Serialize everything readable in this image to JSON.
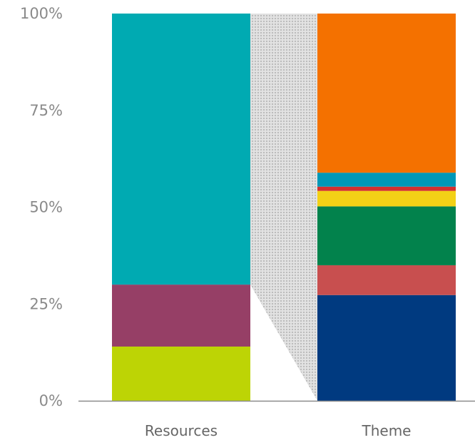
{
  "chart_data": {
    "type": "bar",
    "stacked": true,
    "normalized": true,
    "categories": [
      "Resources",
      "Theme"
    ],
    "y_axis": {
      "ticks": [
        "0%",
        "25%",
        "50%",
        "75%",
        "100%"
      ],
      "tick_values": [
        0,
        25,
        50,
        75,
        100
      ],
      "ylim": [
        0,
        100
      ]
    },
    "connector": {
      "from_category": "Resources",
      "to_category": "Theme",
      "from_range": [
        30,
        100
      ],
      "to_range": [
        0,
        100
      ],
      "fill": "dotted-gray"
    },
    "stacks": [
      {
        "category": "Resources",
        "segments": [
          {
            "value": 14,
            "color": "#bdd405"
          },
          {
            "value": 16,
            "color": "#963f66"
          },
          {
            "value": 70,
            "color": "#00aab2"
          }
        ]
      },
      {
        "category": "Theme",
        "segments": [
          {
            "value": 27.3,
            "color": "#003a80"
          },
          {
            "value": 7.7,
            "color": "#c84f4f"
          },
          {
            "value": 15.2,
            "color": "#02824c"
          },
          {
            "value": 4.0,
            "color": "#f3d116"
          },
          {
            "value": 1.1,
            "color": "#d33030"
          },
          {
            "value": 3.6,
            "color": "#0098b8"
          },
          {
            "value": 41.1,
            "color": "#f47100"
          }
        ]
      }
    ]
  }
}
